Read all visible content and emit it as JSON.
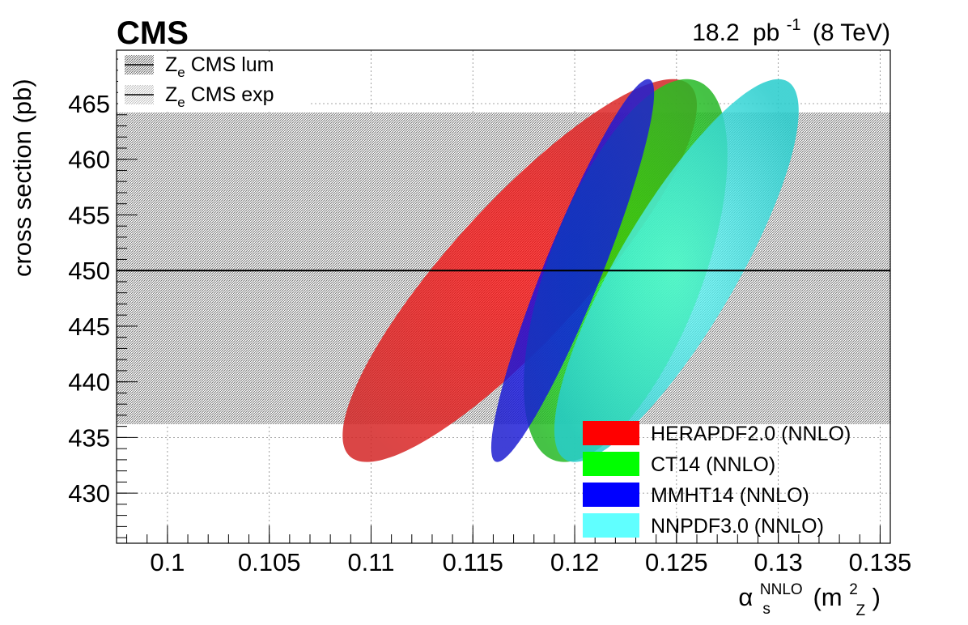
{
  "experiment_label": "CMS",
  "lumi_label": {
    "value": "18.2",
    "unit": "pb",
    "exponent": "-1",
    "energy": "(8 TeV)"
  },
  "chart_data": {
    "type": "scatter",
    "subtype": "confidence-ellipses",
    "xlabel": {
      "symbol": "α",
      "sub": "s",
      "sup": "NNLO",
      "arg_open": "(m",
      "arg_sub": "Z",
      "arg_sup": "2",
      "arg_close": ")"
    },
    "ylabel": "cross section (pb)",
    "xlim": [
      0.0975,
      0.1355
    ],
    "ylim": [
      425.5,
      469.8
    ],
    "x_ticks": [
      "0.1",
      "0.105",
      "0.11",
      "0.115",
      "0.12",
      "0.125",
      "0.13",
      "0.135"
    ],
    "y_ticks": [
      "430",
      "435",
      "440",
      "445",
      "450",
      "455",
      "460",
      "465"
    ],
    "measurement": {
      "value": 450.0,
      "lum_band": [
        436.2,
        464.2
      ],
      "exp_band": [
        436.2,
        464.2
      ],
      "line_color": "#000000"
    },
    "bands_legend": [
      {
        "prefix": "Z",
        "sub": "e",
        "text": " CMS lum"
      },
      {
        "prefix": "Z",
        "sub": "e",
        "text": " CMS exp"
      }
    ],
    "series": [
      {
        "name": "HERAPDF2.0 (NNLO)",
        "color": "#ff0000",
        "fill": "#d42727",
        "ellipse": {
          "x_min": 0.1086,
          "x_max": 0.126,
          "x_at_y_min": 0.1098,
          "x_at_y_max": 0.1248,
          "y_min": 432.8,
          "y_max": 467.2
        }
      },
      {
        "name": "CT14 (NNLO)",
        "color": "#00ff00",
        "fill": "#27b827",
        "ellipse": {
          "x_min": 0.1175,
          "x_max": 0.1275,
          "x_at_y_min": 0.1168,
          "x_at_y_max": 0.1255,
          "y_min": 432.8,
          "y_max": 467.2
        }
      },
      {
        "name": "MMHT14 (NNLO)",
        "color": "#0000ff",
        "fill": "#1f1fd0",
        "ellipse": {
          "x_min": 0.1159,
          "x_max": 0.1239,
          "x_at_y_min": 0.1164,
          "x_at_y_max": 0.1236,
          "y_min": 432.8,
          "y_max": 467.2
        }
      },
      {
        "name": "NNPDF3.0 (NNLO)",
        "color": "#60ffff",
        "fill": "#27cccc",
        "ellipse": {
          "x_min": 0.119,
          "x_max": 0.131,
          "x_at_y_min": 0.1194,
          "x_at_y_max": 0.13,
          "y_min": 432.8,
          "y_max": 467.2
        }
      }
    ],
    "grid": true,
    "legend_position": "bottom-right"
  }
}
